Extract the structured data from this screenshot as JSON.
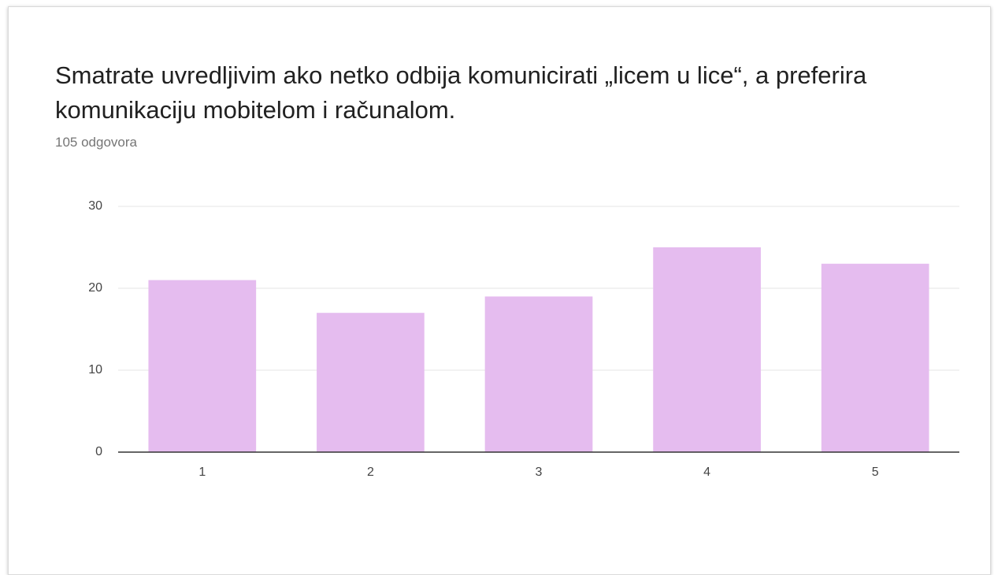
{
  "chart_data": {
    "type": "bar",
    "title": "Smatrate uvredljivim ako netko odbija komunicirati „licem u lice“, a preferira komunikaciju mobitelom i računalom.",
    "subtitle": "105 odgovora",
    "categories": [
      "1",
      "2",
      "3",
      "4",
      "5"
    ],
    "values": [
      21,
      17,
      19,
      25,
      23
    ],
    "color": "#e5bcef",
    "ylim": [
      0,
      30
    ],
    "yticks": [
      0,
      10,
      20,
      30
    ],
    "grid": true
  }
}
